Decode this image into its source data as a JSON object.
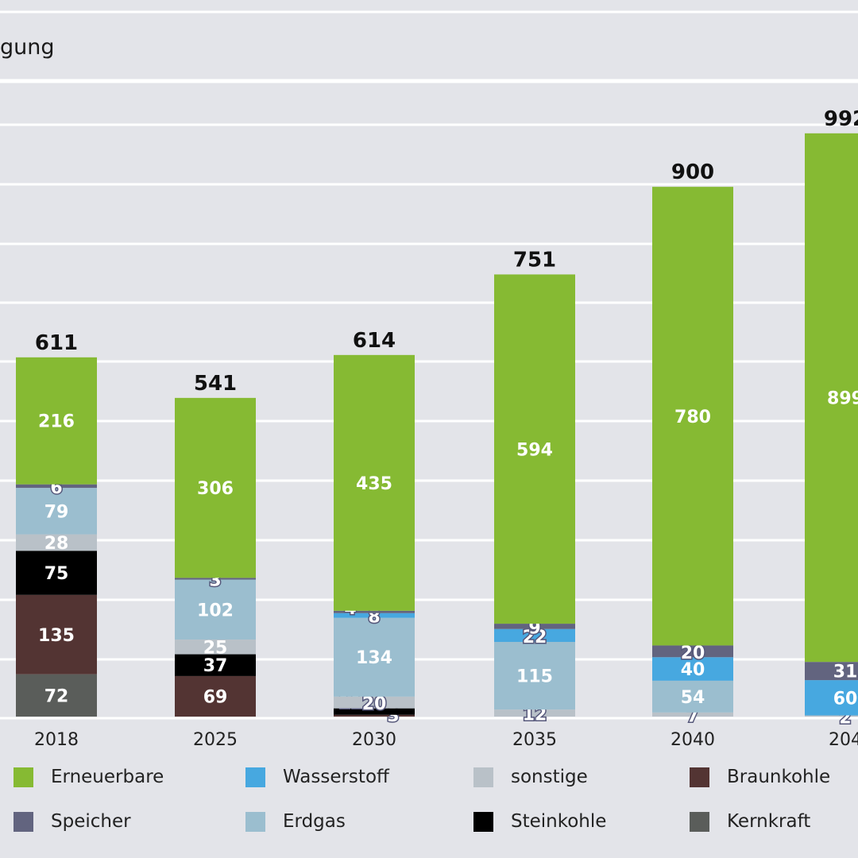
{
  "title": "gung",
  "colors": {
    "background": "#e3e4e9",
    "grid": "#ffffff",
    "total_text": "#111111",
    "segment_text": "#ffffff"
  },
  "legend": [
    {
      "label": "Erneuerbare",
      "color": "#86ba33"
    },
    {
      "label": "Wasserstoff",
      "color": "#47a8e0"
    },
    {
      "label": "sonstige",
      "color": "#b9c1c8"
    },
    {
      "label": "Braunkohle",
      "color": "#533433"
    },
    {
      "label": "Speicher",
      "color": "#62647f"
    },
    {
      "label": "Erdgas",
      "color": "#9bbecf"
    },
    {
      "label": "Steinkohle",
      "color": "#000000"
    },
    {
      "label": "Kernkraft",
      "color": "#5a5d5a"
    }
  ],
  "chart_data": {
    "type": "bar",
    "stacked": true,
    "title": "gung",
    "categories": [
      "2018",
      "2025",
      "2030",
      "2035",
      "2040",
      "204"
    ],
    "totals": [
      "611",
      "541",
      "614",
      "751",
      "900",
      "992"
    ],
    "ylim": [
      0,
      1000
    ],
    "grid": true,
    "legend_position": "bottom",
    "series": [
      {
        "name": "Kernkraft",
        "color": "#5a5d5a",
        "values": [
          72,
          0,
          0,
          0,
          0,
          0
        ],
        "labels": [
          "72",
          "",
          "",
          "",
          "",
          ""
        ]
      },
      {
        "name": "Braunkohle",
        "color": "#533433",
        "values": [
          135,
          69,
          3,
          0,
          0,
          0
        ],
        "labels": [
          "135",
          "69",
          "3",
          "",
          "",
          ""
        ]
      },
      {
        "name": "Steinkohle",
        "color": "#000000",
        "values": [
          75,
          37,
          11,
          0,
          0,
          0
        ],
        "labels": [
          "75",
          "37",
          "11",
          "",
          "",
          ""
        ]
      },
      {
        "name": "sonstige",
        "color": "#b9c1c8",
        "values": [
          28,
          25,
          20,
          12,
          7,
          2
        ],
        "labels": [
          "28",
          "25",
          "20",
          "12",
          "7",
          "2"
        ]
      },
      {
        "name": "Erdgas",
        "color": "#9bbecf",
        "values": [
          79,
          102,
          134,
          115,
          54,
          0
        ],
        "labels": [
          "79",
          "102",
          "134",
          "115",
          "54",
          ""
        ]
      },
      {
        "name": "Wasserstoff",
        "color": "#47a8e0",
        "values": [
          0,
          0,
          8,
          22,
          40,
          60
        ],
        "labels": [
          "",
          "",
          "8",
          "22",
          "40",
          "60"
        ]
      },
      {
        "name": "Speicher",
        "color": "#62647f",
        "values": [
          6,
          3,
          4,
          9,
          20,
          31
        ],
        "labels": [
          "6",
          "3",
          "4",
          "9",
          "20",
          "31"
        ]
      },
      {
        "name": "Erneuerbare",
        "color": "#86ba33",
        "values": [
          216,
          306,
          435,
          594,
          780,
          899
        ],
        "labels": [
          "216",
          "306",
          "435",
          "594",
          "780",
          "899"
        ]
      }
    ]
  }
}
